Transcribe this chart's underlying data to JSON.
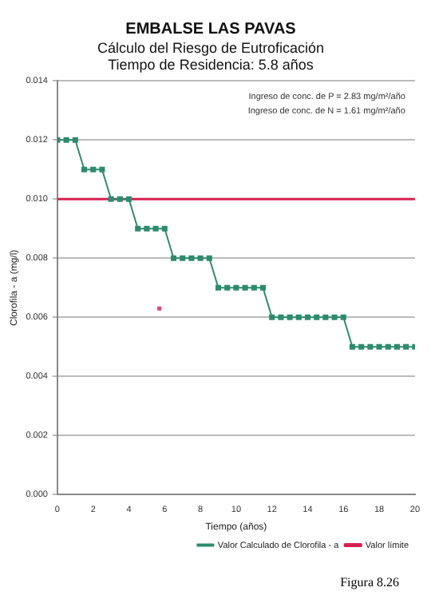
{
  "chart_data": {
    "type": "line",
    "title": "EMBALSE LAS PAVAS",
    "subtitle": "Cálculo del Riesgo de Eutroficación\nTiempo de Residencia: 5.8 años",
    "xlabel": "Tiempo (años)",
    "ylabel": "Clorofila - a (mg/l)",
    "x": [
      0,
      0.5,
      1,
      1.5,
      2,
      2.5,
      3,
      3.5,
      4,
      4.5,
      5,
      5.5,
      6,
      6.5,
      7,
      7.5,
      8,
      8.5,
      9,
      9.5,
      10,
      10.5,
      11,
      11.5,
      12,
      12.5,
      13,
      13.5,
      14,
      14.5,
      15,
      15.5,
      16,
      16.5,
      17,
      17.5,
      18,
      18.5,
      19,
      19.5,
      20
    ],
    "series": [
      {
        "name": "Valor límite",
        "type": "line",
        "color": "#d8204f",
        "marker": "none",
        "x": [
          0,
          20
        ],
        "values": [
          0.01,
          0.01
        ]
      },
      {
        "name": "Valor Calculado de Clorofila - a",
        "type": "line",
        "color": "#2e8b6e",
        "marker": "square",
        "values": [
          0.012,
          0.012,
          0.012,
          0.011,
          0.011,
          0.011,
          0.01,
          0.01,
          0.01,
          0.009,
          0.009,
          0.009,
          0.009,
          0.008,
          0.008,
          0.008,
          0.008,
          0.008,
          0.007,
          0.007,
          0.007,
          0.007,
          0.007,
          0.007,
          0.006,
          0.006,
          0.006,
          0.006,
          0.006,
          0.006,
          0.006,
          0.006,
          0.006,
          0.005,
          0.005,
          0.005,
          0.005,
          0.005,
          0.005,
          0.005,
          0.005
        ]
      },
      {
        "type": "scatter",
        "color": "#e8407a",
        "marker": "square",
        "x": [
          5.7
        ],
        "values": [
          0.0063
        ]
      }
    ],
    "xlim": [
      0,
      20
    ],
    "xticks": [
      0,
      2,
      4,
      6,
      8,
      10,
      12,
      14,
      16,
      18,
      20
    ],
    "ylim": [
      0,
      0.014
    ],
    "yticks": [
      {
        "value": 0,
        "label": "0.000"
      },
      {
        "value": 0.002,
        "label": "0.002"
      },
      {
        "value": 0.004,
        "label": "0.004"
      },
      {
        "value": 0.006,
        "label": "0.006"
      },
      {
        "value": 0.008,
        "label": "0.008"
      },
      {
        "value": 0.01,
        "label": "0.010"
      },
      {
        "value": 0.012,
        "label": "0.012"
      },
      {
        "value": 0.014,
        "label": "0.014"
      }
    ],
    "grid": "y",
    "legend": "bottom",
    "annotations": [
      "Ingreso de conc. de P = 2.83 mg/m²/año",
      "Ingreso de conc. de N = 1.61 mg/m²/año",
      "Figura 8.26"
    ]
  }
}
